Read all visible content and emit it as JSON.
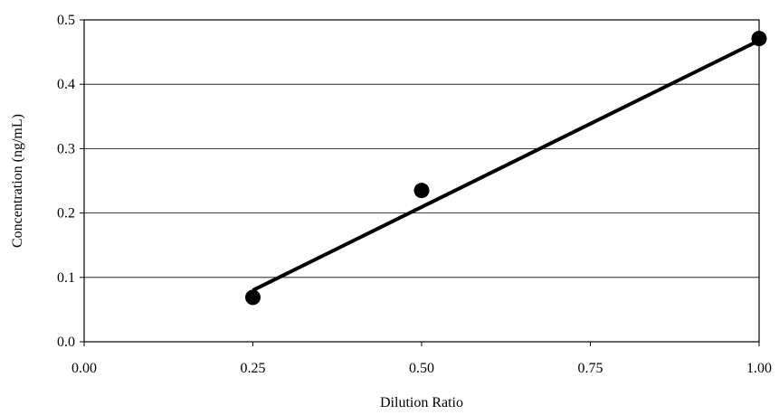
{
  "chart_data": {
    "type": "scatter",
    "title": "",
    "xlabel": "Dilution Ratio",
    "ylabel": "Concentration (ng/mL)",
    "xlim": [
      0.0,
      1.0
    ],
    "ylim": [
      0.0,
      0.5
    ],
    "x_ticks": [
      "0.00",
      "0.25",
      "0.50",
      "0.75",
      "1.00"
    ],
    "y_ticks": [
      "0.0",
      "0.1",
      "0.2",
      "0.3",
      "0.4",
      "0.5"
    ],
    "grid": "horizontal",
    "legend": "none",
    "series": [
      {
        "x": [
          0.25,
          0.5,
          1.0
        ],
        "y": [
          0.069,
          0.235,
          0.471
        ],
        "marker_color": "#000000"
      }
    ],
    "trendline": {
      "type": "linear",
      "x": [
        0.25,
        1.0
      ],
      "y": [
        0.08,
        0.468
      ],
      "color": "#000000"
    }
  }
}
